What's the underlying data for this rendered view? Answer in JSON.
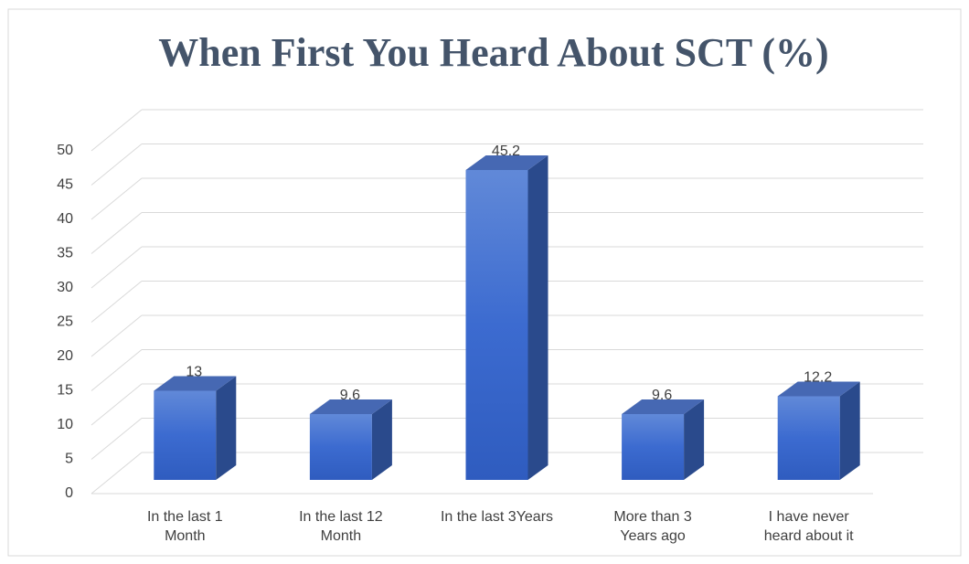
{
  "chart_data": {
    "type": "bar3d",
    "title": "When First You Heard About SCT (%)",
    "categories": [
      "In the last 1\nMonth",
      "In the last 12\nMonth",
      "In the last 3Years",
      "More than  3\nYears ago",
      "I have never\nheard about it"
    ],
    "values": [
      13,
      9.6,
      45.2,
      9.6,
      12.2
    ],
    "color": "#3f6fd0",
    "ylim": [
      0,
      50
    ],
    "yticks": [
      0,
      5,
      10,
      15,
      20,
      25,
      30,
      35,
      40,
      45,
      50
    ],
    "grid": true
  }
}
